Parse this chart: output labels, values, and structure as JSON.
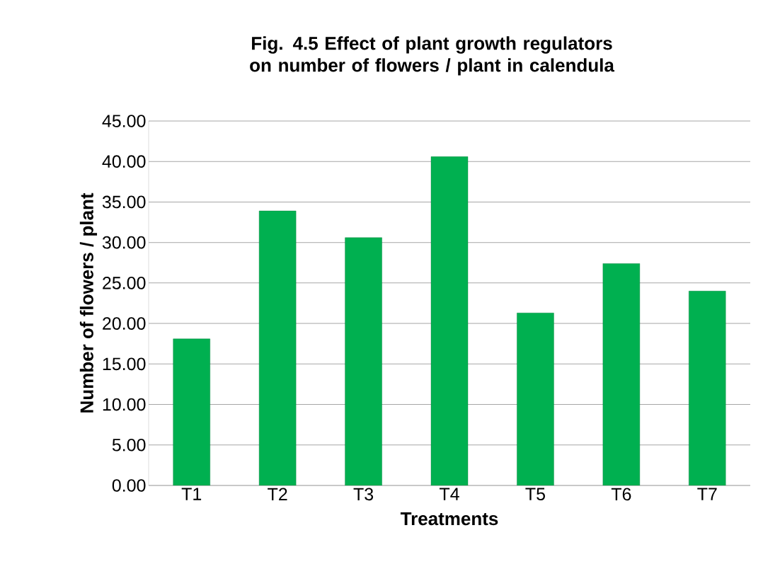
{
  "chart_data": {
    "type": "bar",
    "title": "Fig. 4.5 Effect of plant growth regulators on number of flowers / plant in calendula",
    "xlabel": "Treatments",
    "ylabel": "Number of  flowers / plant",
    "categories": [
      "T1",
      "T2",
      "T3",
      "T4",
      "T5",
      "T6",
      "T7"
    ],
    "values": [
      18.1,
      33.9,
      30.6,
      40.6,
      21.3,
      27.4,
      24.0
    ],
    "color": "#00b050",
    "ylim": [
      0,
      45
    ],
    "yticks": [
      {
        "value": 0,
        "label": "0.00"
      },
      {
        "value": 5,
        "label": "5.00"
      },
      {
        "value": 10,
        "label": "10.00"
      },
      {
        "value": 15,
        "label": "15.00"
      },
      {
        "value": 20,
        "label": "20.00"
      },
      {
        "value": 25,
        "label": "25.00"
      },
      {
        "value": 30,
        "label": "30.00"
      },
      {
        "value": 35,
        "label": "35.00"
      },
      {
        "value": 40,
        "label": "40.00"
      },
      {
        "value": 45,
        "label": "45.00"
      }
    ],
    "grid": "y"
  }
}
